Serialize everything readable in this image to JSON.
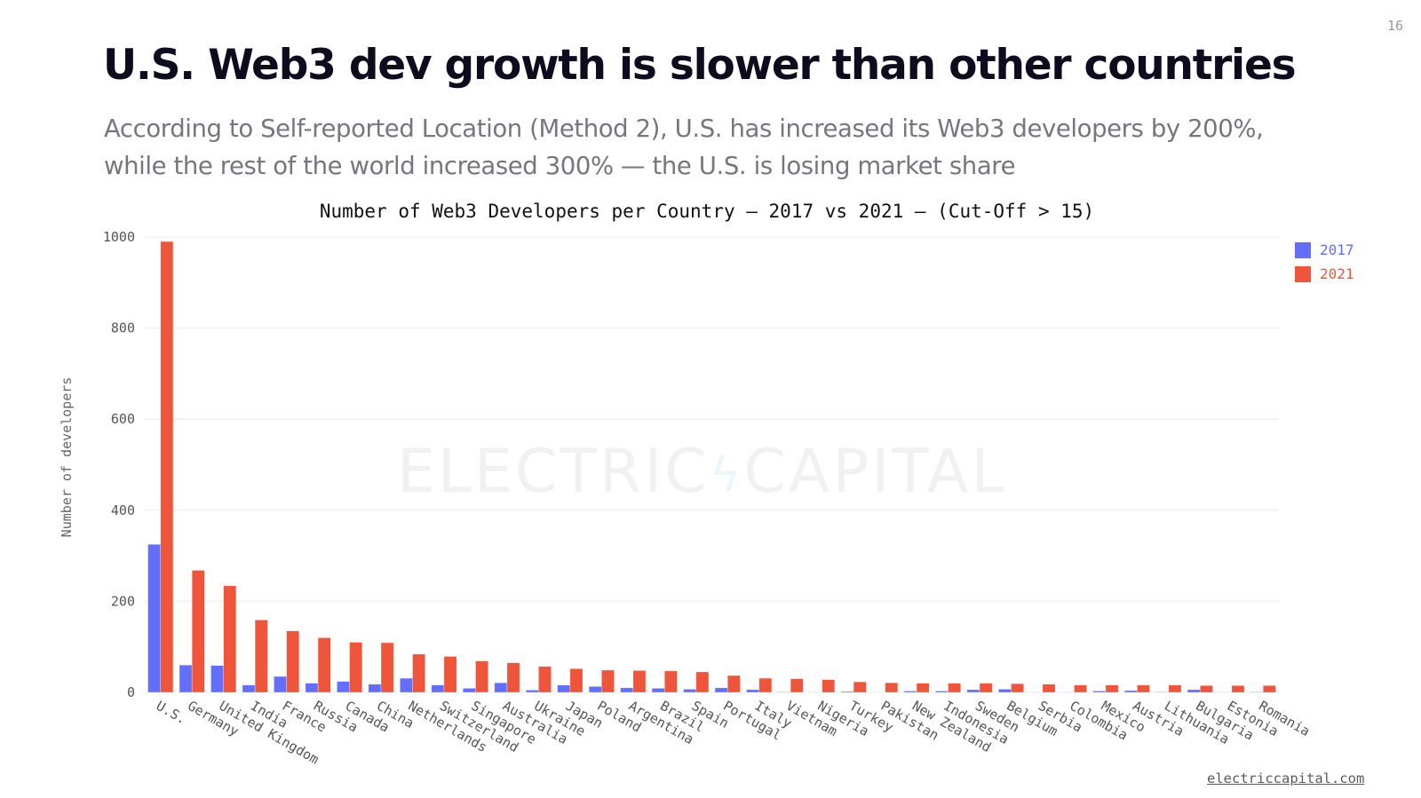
{
  "page": {
    "number": "16",
    "title": "U.S. Web3 dev growth is slower than other countries",
    "subtitle_line1": "According to Self-reported Location (Method 2), U.S. has increased its Web3 developers by 200%,",
    "subtitle_line2": "while the rest of the world increased 300% — the U.S. is losing market share",
    "footer_link": "electriccapital.com",
    "watermark_left": "ELECTRIC",
    "watermark_icon": "lightning-bolt-icon",
    "watermark_right": "CAPITAL"
  },
  "colors": {
    "series_2017": "#636efa",
    "series_2021": "#ef553b",
    "gridline": "#eef2f8",
    "tick_text": "#555555"
  },
  "chart_data": {
    "type": "bar",
    "title": "Number of Web3 Developers per Country — 2017 vs 2021 — (Cut-Off > 15)",
    "xlabel": "",
    "ylabel": "Number of developers",
    "ylim": [
      0,
      1000
    ],
    "yticks": [
      0,
      200,
      400,
      600,
      800,
      1000
    ],
    "grid": true,
    "legend_position": "top-right",
    "categories": [
      "U.S.",
      "Germany",
      "United Kingdom",
      "India",
      "France",
      "Russia",
      "Canada",
      "China",
      "Netherlands",
      "Switzerland",
      "Singapore",
      "Australia",
      "Ukraine",
      "Japan",
      "Poland",
      "Argentina",
      "Brazil",
      "Spain",
      "Portugal",
      "Italy",
      "Vietnam",
      "Nigeria",
      "Turkey",
      "Pakistan",
      "New Zealand",
      "Indonesia",
      "Sweden",
      "Belgium",
      "Serbia",
      "Colombia",
      "Mexico",
      "Austria",
      "Lithuania",
      "Bulgaria",
      "Estonia",
      "Romania"
    ],
    "series": [
      {
        "name": "2017",
        "values": [
          325,
          60,
          59,
          16,
          35,
          20,
          24,
          18,
          31,
          16,
          9,
          21,
          5,
          16,
          13,
          10,
          9,
          7,
          10,
          6,
          1,
          0,
          2,
          0,
          3,
          3,
          6,
          7,
          0,
          0,
          3,
          4,
          1,
          6,
          0,
          1
        ]
      },
      {
        "name": "2021",
        "values": [
          990,
          268,
          234,
          159,
          135,
          120,
          110,
          109,
          84,
          79,
          69,
          65,
          57,
          52,
          49,
          48,
          47,
          45,
          37,
          31,
          30,
          28,
          23,
          21,
          20,
          20,
          20,
          19,
          18,
          16,
          16,
          16,
          16,
          15,
          15,
          15
        ]
      }
    ]
  }
}
